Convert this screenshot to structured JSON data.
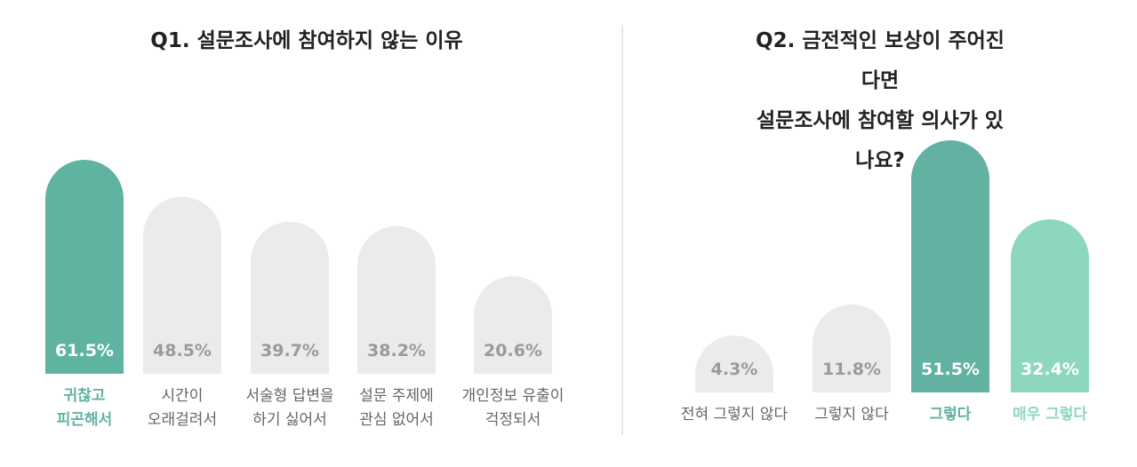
{
  "chart_data": [
    {
      "type": "bar",
      "title": "Q1. 설문조사에 참여하지 않는 이유",
      "categories": [
        "귀찮고\n피곤해서",
        "시간이\n오래걸려서",
        "서술형 답변을\n하기 싫어서",
        "설문 주제에\n관심 없어서",
        "개인정보 유출이\n걱정되서"
      ],
      "values": [
        61.5,
        48.5,
        39.7,
        38.2,
        20.6
      ],
      "value_labels": [
        "61.5%",
        "48.5%",
        "39.7%",
        "38.2%",
        "20.6%"
      ],
      "colors": [
        "#5fb3a1",
        "#ebebeb",
        "#ebebeb",
        "#ebebeb",
        "#ebebeb"
      ]
    },
    {
      "type": "bar",
      "title": "Q2. 금전적인 보상이 주어진다면\n설문조사에 참여할 의사가 있나요?",
      "categories": [
        "전혀 그렇지 않다",
        "그렇지 않다",
        "그렇다",
        "매우 그렇다"
      ],
      "values": [
        4.3,
        11.8,
        51.5,
        32.4
      ],
      "value_labels": [
        "4.3%",
        "11.8%",
        "51.5%",
        "32.4%"
      ],
      "colors": [
        "#ebebeb",
        "#ebebeb",
        "#62b1a2",
        "#8dd7c1"
      ]
    }
  ]
}
